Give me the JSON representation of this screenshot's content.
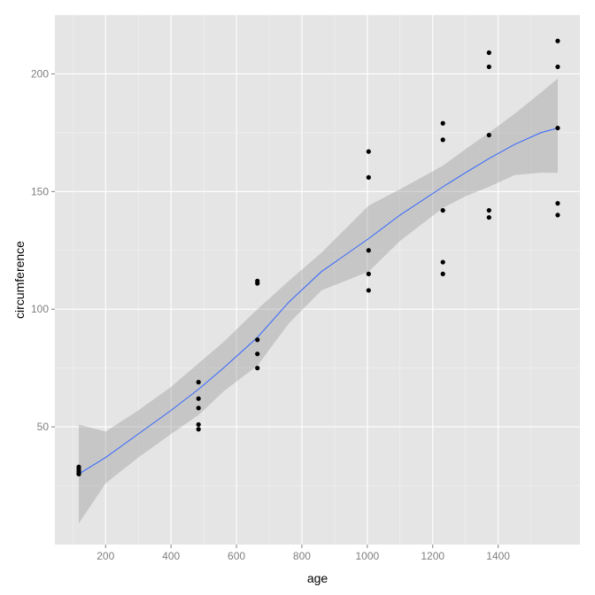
{
  "chart_data": {
    "type": "scatter",
    "xlabel": "age",
    "ylabel": "circumference",
    "xlim": [
      45,
      1650
    ],
    "ylim": [
      0,
      225
    ],
    "x_ticks": [
      200,
      400,
      600,
      800,
      1000,
      1200,
      1400
    ],
    "y_ticks": [
      50,
      100,
      150,
      200
    ],
    "x_tick_labels": [
      "200",
      "400",
      "600",
      "800",
      "1000",
      "1200",
      "1400"
    ],
    "y_tick_labels": [
      "50",
      "100",
      "150",
      "200"
    ],
    "grid": true,
    "legend": "none",
    "points": [
      {
        "x": 118,
        "y": 30
      },
      {
        "x": 118,
        "y": 30
      },
      {
        "x": 118,
        "y": 32
      },
      {
        "x": 118,
        "y": 33
      },
      {
        "x": 118,
        "y": 31
      },
      {
        "x": 484,
        "y": 58
      },
      {
        "x": 484,
        "y": 69
      },
      {
        "x": 484,
        "y": 51
      },
      {
        "x": 484,
        "y": 62
      },
      {
        "x": 484,
        "y": 49
      },
      {
        "x": 664,
        "y": 87
      },
      {
        "x": 664,
        "y": 111
      },
      {
        "x": 664,
        "y": 75
      },
      {
        "x": 664,
        "y": 112
      },
      {
        "x": 664,
        "y": 81
      },
      {
        "x": 1004,
        "y": 115
      },
      {
        "x": 1004,
        "y": 156
      },
      {
        "x": 1004,
        "y": 108
      },
      {
        "x": 1004,
        "y": 167
      },
      {
        "x": 1004,
        "y": 125
      },
      {
        "x": 1231,
        "y": 120
      },
      {
        "x": 1231,
        "y": 172
      },
      {
        "x": 1231,
        "y": 115
      },
      {
        "x": 1231,
        "y": 179
      },
      {
        "x": 1231,
        "y": 142
      },
      {
        "x": 1372,
        "y": 142
      },
      {
        "x": 1372,
        "y": 203
      },
      {
        "x": 1372,
        "y": 139
      },
      {
        "x": 1372,
        "y": 209
      },
      {
        "x": 1372,
        "y": 174
      },
      {
        "x": 1582,
        "y": 145
      },
      {
        "x": 1582,
        "y": 203
      },
      {
        "x": 1582,
        "y": 140
      },
      {
        "x": 1582,
        "y": 214
      },
      {
        "x": 1582,
        "y": 177
      }
    ],
    "smooth": {
      "method": "loess",
      "x": [
        118,
        200,
        300,
        400,
        484,
        560,
        664,
        760,
        860,
        1004,
        1100,
        1231,
        1300,
        1372,
        1450,
        1530,
        1582
      ],
      "y": [
        30,
        37,
        47,
        57,
        66,
        75,
        88,
        103,
        116,
        130,
        140,
        152,
        158,
        164,
        170,
        175,
        177
      ],
      "lower": [
        9,
        26,
        37,
        47,
        55,
        65,
        76,
        94,
        108,
        116,
        129,
        143,
        148,
        152,
        157,
        158,
        158
      ],
      "upper": [
        51,
        48,
        57,
        67,
        77,
        86,
        100,
        112,
        124,
        144,
        151,
        161,
        168,
        175,
        183,
        192,
        198
      ]
    },
    "colors": {
      "panel_bg": "#e5e5e5",
      "grid_major": "#ffffff",
      "grid_minor": "#f2f2f2",
      "point": "#000000",
      "line": "#3366ff",
      "ribbon": "#999999"
    }
  }
}
